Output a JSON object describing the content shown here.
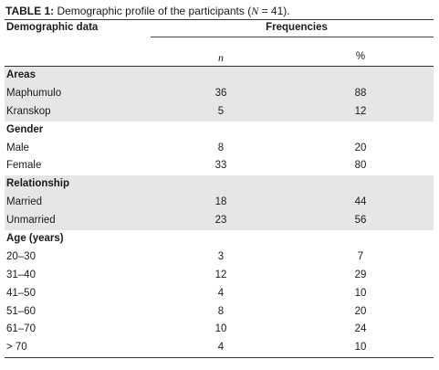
{
  "caption": {
    "label": "TABLE 1:",
    "text_before": " Demographic profile of the participants (",
    "n_symbol": "N",
    "text_after": " = 41)."
  },
  "headers": {
    "demographic": "Demographic data",
    "frequencies": "Frequencies",
    "n": "n",
    "percent": "%"
  },
  "rows": [
    {
      "label": "Areas",
      "n": "",
      "pct": "",
      "heading": true,
      "shaded": true
    },
    {
      "label": "Maphumulo",
      "n": "36",
      "pct": "88",
      "heading": false,
      "shaded": true
    },
    {
      "label": "Kranskop",
      "n": "5",
      "pct": "12",
      "heading": false,
      "shaded": true
    },
    {
      "label": "Gender",
      "n": "",
      "pct": "",
      "heading": true,
      "shaded": false
    },
    {
      "label": "Male",
      "n": "8",
      "pct": "20",
      "heading": false,
      "shaded": false
    },
    {
      "label": "Female",
      "n": "33",
      "pct": "80",
      "heading": false,
      "shaded": false
    },
    {
      "label": "Relationship",
      "n": "",
      "pct": "",
      "heading": true,
      "shaded": true
    },
    {
      "label": "Married",
      "n": "18",
      "pct": "44",
      "heading": false,
      "shaded": true
    },
    {
      "label": "Unmarried",
      "n": "23",
      "pct": "56",
      "heading": false,
      "shaded": true
    },
    {
      "label": "Age (years)",
      "n": "",
      "pct": "",
      "heading": true,
      "shaded": false
    },
    {
      "label": "20–30",
      "n": "3",
      "pct": "7",
      "heading": false,
      "shaded": false
    },
    {
      "label": "31–40",
      "n": "12",
      "pct": "29",
      "heading": false,
      "shaded": false
    },
    {
      "label": "41–50",
      "n": "4",
      "pct": "10",
      "heading": false,
      "shaded": false
    },
    {
      "label": "51–60",
      "n": "8",
      "pct": "20",
      "heading": false,
      "shaded": false
    },
    {
      "label": "61–70",
      "n": "10",
      "pct": "24",
      "heading": false,
      "shaded": false
    },
    {
      "label": "> 70",
      "n": "4",
      "pct": "10",
      "heading": false,
      "shaded": false
    }
  ]
}
